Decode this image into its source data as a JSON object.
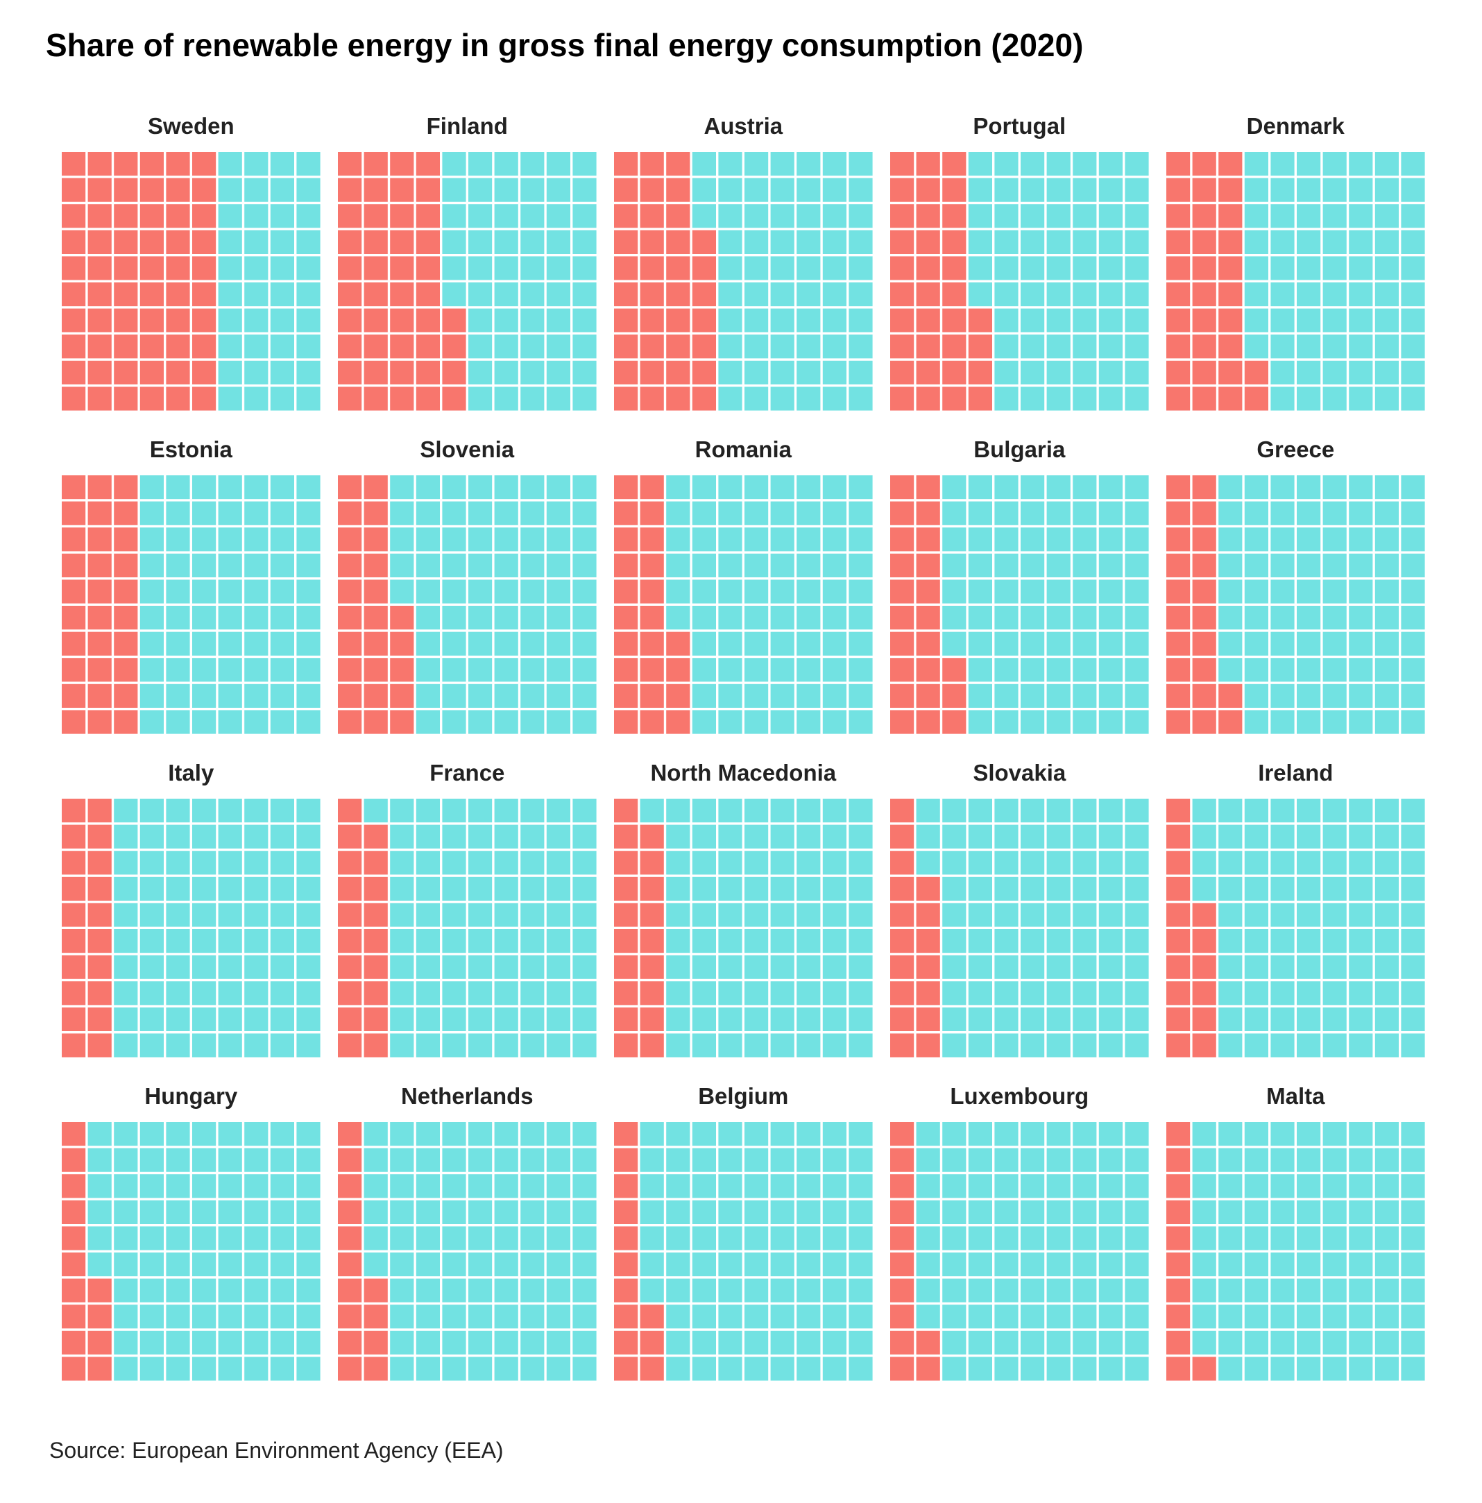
{
  "chart_data": {
    "type": "waffle",
    "title": "Share of renewable energy in gross final energy consumption (2020)",
    "source": "Source: European Environment Agency (EEA)",
    "grid": "10x10",
    "unit": "%",
    "colors": {
      "renewable": "#F8766D",
      "other": "#72E2E2"
    },
    "countries": [
      {
        "name": "Sweden",
        "value": 60
      },
      {
        "name": "Finland",
        "value": 44
      },
      {
        "name": "Austria",
        "value": 37
      },
      {
        "name": "Portugal",
        "value": 34
      },
      {
        "name": "Denmark",
        "value": 32
      },
      {
        "name": "Estonia",
        "value": 30
      },
      {
        "name": "Slovenia",
        "value": 25
      },
      {
        "name": "Romania",
        "value": 24
      },
      {
        "name": "Bulgaria",
        "value": 23
      },
      {
        "name": "Greece",
        "value": 22
      },
      {
        "name": "Italy",
        "value": 20
      },
      {
        "name": "France",
        "value": 19
      },
      {
        "name": "North Macedonia",
        "value": 19
      },
      {
        "name": "Slovakia",
        "value": 17
      },
      {
        "name": "Ireland",
        "value": 16
      },
      {
        "name": "Hungary",
        "value": 14
      },
      {
        "name": "Netherlands",
        "value": 14
      },
      {
        "name": "Belgium",
        "value": 13
      },
      {
        "name": "Luxembourg",
        "value": 12
      },
      {
        "name": "Malta",
        "value": 11
      }
    ]
  }
}
